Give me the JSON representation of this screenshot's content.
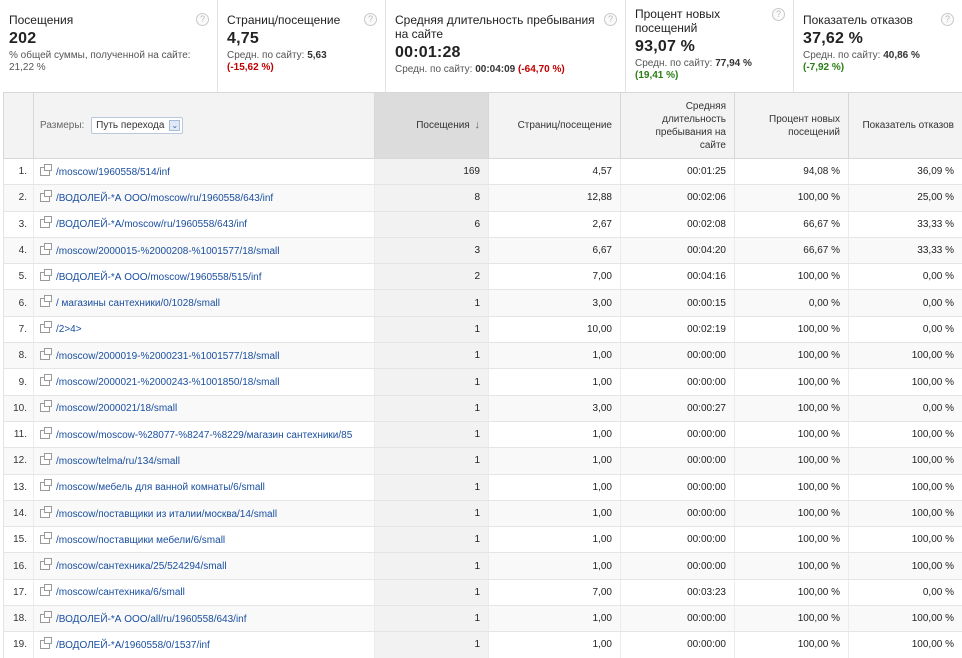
{
  "summary": {
    "visits": {
      "title": "Посещения",
      "value": "202",
      "sub": "% общей суммы, полученной на сайте: 21,22 %"
    },
    "pages": {
      "title": "Страниц/посещение",
      "value": "4,75",
      "avg_label": "Средн. по сайту:",
      "avg": "5,63",
      "delta": "(-15,62 %)"
    },
    "duration": {
      "title": "Средняя длительность пребывания на сайте",
      "value": "00:01:28",
      "avg_label": "Средн. по сайту:",
      "avg": "00:04:09",
      "delta": "(-64,70 %)"
    },
    "newvisits": {
      "title": "Процент новых посещений",
      "value": "93,07 %",
      "avg_label": "Средн. по сайту:",
      "avg": "77,94 %",
      "delta": "(19,41 %)"
    },
    "bounce": {
      "title": "Показатель отказов",
      "value": "37,62 %",
      "avg_label": "Средн. по сайту:",
      "avg": "40,86 %",
      "delta": "(-7,92 %)"
    },
    "help_glyph": "?"
  },
  "table": {
    "dimension_label": "Размеры:",
    "dimension_value": "Путь перехода",
    "sort_glyph": "↓",
    "headers": {
      "visits": "Посещения",
      "pages": "Страниц/посещение",
      "duration": "Средняя длительность пребывания на сайте",
      "newvisits": "Процент новых посещений",
      "bounce": "Показатель отказов"
    },
    "rows": [
      {
        "idx": "1.",
        "path": "/moscow/1960558/514/inf",
        "visits": "169",
        "pages": "4,57",
        "duration": "00:01:25",
        "newvisits": "94,08 %",
        "bounce": "36,09 %"
      },
      {
        "idx": "2.",
        "path": "/ВОДОЛЕЙ-*А ООО/moscow/ru/1960558/643/inf",
        "visits": "8",
        "pages": "12,88",
        "duration": "00:02:06",
        "newvisits": "100,00 %",
        "bounce": "25,00 %"
      },
      {
        "idx": "3.",
        "path": "/ВОДОЛЕЙ-*А/moscow/ru/1960558/643/inf",
        "visits": "6",
        "pages": "2,67",
        "duration": "00:02:08",
        "newvisits": "66,67 %",
        "bounce": "33,33 %"
      },
      {
        "idx": "4.",
        "path": "/moscow/2000015-%2000208-%1001577/18/small",
        "visits": "3",
        "pages": "6,67",
        "duration": "00:04:20",
        "newvisits": "66,67 %",
        "bounce": "33,33 %"
      },
      {
        "idx": "5.",
        "path": "/ВОДОЛЕЙ-*А ООО/moscow/1960558/515/inf",
        "visits": "2",
        "pages": "7,00",
        "duration": "00:04:16",
        "newvisits": "100,00 %",
        "bounce": "0,00 %"
      },
      {
        "idx": "6.",
        "path": "/ магазины сантехники/0/1028/small",
        "visits": "1",
        "pages": "3,00",
        "duration": "00:00:15",
        "newvisits": "0,00 %",
        "bounce": "0,00 %"
      },
      {
        "idx": "7.",
        "path": "/2>4>",
        "visits": "1",
        "pages": "10,00",
        "duration": "00:02:19",
        "newvisits": "100,00 %",
        "bounce": "0,00 %"
      },
      {
        "idx": "8.",
        "path": "/moscow/2000019-%2000231-%1001577/18/small",
        "visits": "1",
        "pages": "1,00",
        "duration": "00:00:00",
        "newvisits": "100,00 %",
        "bounce": "100,00 %"
      },
      {
        "idx": "9.",
        "path": "/moscow/2000021-%2000243-%1001850/18/small",
        "visits": "1",
        "pages": "1,00",
        "duration": "00:00:00",
        "newvisits": "100,00 %",
        "bounce": "100,00 %"
      },
      {
        "idx": "10.",
        "path": "/moscow/2000021/18/small",
        "visits": "1",
        "pages": "3,00",
        "duration": "00:00:27",
        "newvisits": "100,00 %",
        "bounce": "0,00 %"
      },
      {
        "idx": "11.",
        "path": "/moscow/moscow-%28077-%8247-%8229/магазин сантехники/85",
        "visits": "1",
        "pages": "1,00",
        "duration": "00:00:00",
        "newvisits": "100,00 %",
        "bounce": "100,00 %"
      },
      {
        "idx": "12.",
        "path": "/moscow/telma/ru/134/small",
        "visits": "1",
        "pages": "1,00",
        "duration": "00:00:00",
        "newvisits": "100,00 %",
        "bounce": "100,00 %"
      },
      {
        "idx": "13.",
        "path": "/moscow/мебель для ванной комнаты/6/small",
        "visits": "1",
        "pages": "1,00",
        "duration": "00:00:00",
        "newvisits": "100,00 %",
        "bounce": "100,00 %"
      },
      {
        "idx": "14.",
        "path": "/moscow/поставщики из италии/москва/14/small",
        "visits": "1",
        "pages": "1,00",
        "duration": "00:00:00",
        "newvisits": "100,00 %",
        "bounce": "100,00 %"
      },
      {
        "idx": "15.",
        "path": "/moscow/поставщики мебели/6/small",
        "visits": "1",
        "pages": "1,00",
        "duration": "00:00:00",
        "newvisits": "100,00 %",
        "bounce": "100,00 %"
      },
      {
        "idx": "16.",
        "path": "/moscow/сантехника/25/524294/small",
        "visits": "1",
        "pages": "1,00",
        "duration": "00:00:00",
        "newvisits": "100,00 %",
        "bounce": "100,00 %"
      },
      {
        "idx": "17.",
        "path": "/moscow/сантехника/6/small",
        "visits": "1",
        "pages": "7,00",
        "duration": "00:03:23",
        "newvisits": "100,00 %",
        "bounce": "0,00 %"
      },
      {
        "idx": "18.",
        "path": "/ВОДОЛЕЙ-*А ООО/all/ru/1960558/643/inf",
        "visits": "1",
        "pages": "1,00",
        "duration": "00:00:00",
        "newvisits": "100,00 %",
        "bounce": "100,00 %"
      },
      {
        "idx": "19.",
        "path": "/ВОДОЛЕЙ-*А/1960558/0/1537/inf",
        "visits": "1",
        "pages": "1,00",
        "duration": "00:00:00",
        "newvisits": "100,00 %",
        "bounce": "100,00 %"
      }
    ]
  },
  "colors": {
    "link": "#1a4fa0",
    "negative": "#c00000",
    "positive": "#2a7d14",
    "sorted_header": "#dcdcdc"
  }
}
